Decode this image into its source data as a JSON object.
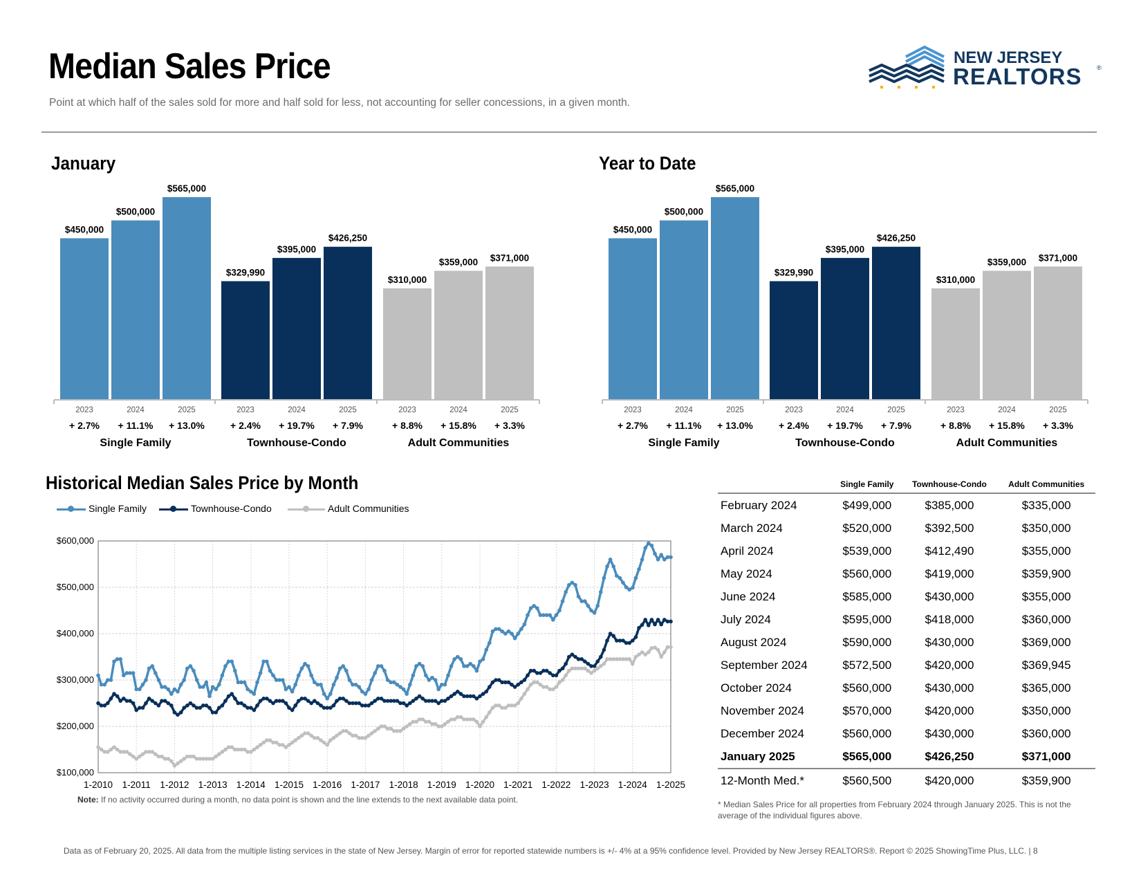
{
  "header": {
    "title": "Median Sales Price",
    "subtitle": "Point at which half of the sales sold for more and half sold for less, not accounting for seller concessions, in a given month.",
    "logo_line1": "NEW JERSEY",
    "logo_line2": "REALTORS"
  },
  "colors": {
    "single_family": "#4a8cbc",
    "townhouse_condo": "#08305a",
    "adult_communities": "#bfbfbf",
    "logo_navy": "#13375e",
    "logo_light": "#4a95d0",
    "logo_gold": "#f2b51a"
  },
  "chart_data": [
    {
      "type": "bar",
      "title": "January",
      "groups": [
        "Single Family",
        "Townhouse-Condo",
        "Adult Communities"
      ],
      "categories": [
        "2023",
        "2024",
        "2025"
      ],
      "series": [
        {
          "name": "Single Family",
          "values": [
            450000,
            500000,
            565000
          ],
          "labels": [
            "$450,000",
            "$500,000",
            "$565,000"
          ],
          "changes": [
            "+ 2.7%",
            "+ 11.1%",
            "+ 13.0%"
          ]
        },
        {
          "name": "Townhouse-Condo",
          "values": [
            329990,
            395000,
            426250
          ],
          "labels": [
            "$329,990",
            "$395,000",
            "$426,250"
          ],
          "changes": [
            "+ 2.4%",
            "+ 19.7%",
            "+ 7.9%"
          ]
        },
        {
          "name": "Adult Communities",
          "values": [
            310000,
            359000,
            371000
          ],
          "labels": [
            "$310,000",
            "$359,000",
            "$371,000"
          ],
          "changes": [
            "+ 8.8%",
            "+ 15.8%",
            "+ 3.3%"
          ]
        }
      ],
      "ylim": [
        0,
        565000
      ]
    },
    {
      "type": "bar",
      "title": "Year to Date",
      "groups": [
        "Single Family",
        "Townhouse-Condo",
        "Adult Communities"
      ],
      "categories": [
        "2023",
        "2024",
        "2025"
      ],
      "series": [
        {
          "name": "Single Family",
          "values": [
            450000,
            500000,
            565000
          ],
          "labels": [
            "$450,000",
            "$500,000",
            "$565,000"
          ],
          "changes": [
            "+ 2.7%",
            "+ 11.1%",
            "+ 13.0%"
          ]
        },
        {
          "name": "Townhouse-Condo",
          "values": [
            329990,
            395000,
            426250
          ],
          "labels": [
            "$329,990",
            "$395,000",
            "$426,250"
          ],
          "changes": [
            "+ 2.4%",
            "+ 19.7%",
            "+ 7.9%"
          ]
        },
        {
          "name": "Adult Communities",
          "values": [
            310000,
            359000,
            371000
          ],
          "labels": [
            "$310,000",
            "$359,000",
            "$371,000"
          ],
          "changes": [
            "+ 8.8%",
            "+ 15.8%",
            "+ 3.3%"
          ]
        }
      ],
      "ylim": [
        0,
        565000
      ]
    },
    {
      "type": "line",
      "title": "Historical Median Sales Price by Month",
      "x_ticks": [
        "1-2010",
        "1-2011",
        "1-2012",
        "1-2013",
        "1-2014",
        "1-2015",
        "1-2016",
        "1-2017",
        "1-2018",
        "1-2019",
        "1-2020",
        "1-2021",
        "1-2022",
        "1-2023",
        "1-2024",
        "1-2025"
      ],
      "y_ticks": [
        "$100,000",
        "$200,000",
        "$300,000",
        "$400,000",
        "$500,000",
        "$600,000"
      ],
      "ylim": [
        100000,
        600000
      ],
      "grid": true,
      "legend": "top-left",
      "series": [
        {
          "name": "Single Family",
          "yearly": [
            [
              310,
              290,
              290,
              300,
              300,
              340,
              345,
              345,
              310,
              315,
              315,
              315
            ],
            [
              280,
              280,
              290,
              300,
              325,
              330,
              315,
              300,
              285,
              285,
              280,
              270
            ],
            [
              280,
              275,
              290,
              300,
              325,
              330,
              320,
              300,
              285,
              285,
              295,
              265
            ],
            [
              285,
              280,
              290,
              310,
              330,
              340,
              340,
              320,
              295,
              295,
              295,
              280
            ],
            [
              275,
              270,
              295,
              315,
              340,
              340,
              320,
              310,
              300,
              300,
              300,
              280
            ],
            [
              285,
              275,
              290,
              310,
              325,
              335,
              330,
              310,
              295,
              290,
              290,
              270
            ],
            [
              260,
              270,
              290,
              305,
              325,
              330,
              320,
              300,
              290,
              290,
              285,
              275
            ],
            [
              270,
              280,
              300,
              315,
              330,
              330,
              320,
              300,
              295,
              295,
              290,
              285
            ],
            [
              280,
              270,
              290,
              310,
              330,
              335,
              330,
              310,
              300,
              305,
              300,
              280
            ],
            [
              290,
              290,
              310,
              330,
              345,
              350,
              345,
              330,
              330,
              335,
              330,
              320
            ],
            [
              340,
              345,
              365,
              380,
              405,
              410,
              410,
              405,
              400,
              405,
              400,
              390
            ],
            [
              400,
              410,
              420,
              440,
              455,
              460,
              455,
              440,
              440,
              440,
              440,
              430
            ],
            [
              440,
              450,
              470,
              490,
              505,
              510,
              505,
              480,
              470,
              470,
              460,
              450
            ],
            [
              445,
              460,
              490,
              520,
              545,
              560,
              545,
              525,
              520,
              510,
              500,
              495
            ],
            [
              499,
              520,
              539,
              560,
              585,
              595,
              590,
              572.5,
              560,
              570,
              560,
              565
            ],
            [
              565
            ]
          ]
        },
        {
          "name": "Townhouse-Condo",
          "yearly": [
            [
              250,
              245,
              245,
              250,
              260,
              270,
              265,
              255,
              260,
              255,
              255,
              250
            ],
            [
              235,
              240,
              240,
              250,
              260,
              255,
              250,
              245,
              255,
              255,
              250,
              245
            ],
            [
              230,
              225,
              230,
              240,
              245,
              250,
              245,
              240,
              240,
              245,
              245,
              240
            ],
            [
              230,
              230,
              240,
              245,
              255,
              265,
              270,
              260,
              250,
              250,
              245,
              240
            ],
            [
              240,
              235,
              245,
              255,
              260,
              260,
              255,
              250,
              255,
              255,
              255,
              250
            ],
            [
              240,
              235,
              245,
              255,
              260,
              260,
              255,
              250,
              255,
              250,
              245,
              240
            ],
            [
              240,
              240,
              245,
              255,
              260,
              260,
              255,
              250,
              250,
              250,
              250,
              245
            ],
            [
              245,
              245,
              250,
              255,
              260,
              260,
              255,
              255,
              255,
              255,
              255,
              250
            ],
            [
              250,
              245,
              250,
              255,
              260,
              265,
              260,
              255,
              255,
              255,
              255,
              250
            ],
            [
              255,
              255,
              260,
              265,
              270,
              275,
              270,
              265,
              265,
              265,
              265,
              260
            ],
            [
              265,
              270,
              275,
              285,
              295,
              300,
              300,
              295,
              295,
              295,
              290,
              285
            ],
            [
              290,
              295,
              300,
              310,
              320,
              320,
              315,
              315,
              320,
              320,
              315,
              310
            ],
            [
              310,
              320,
              325,
              335,
              350,
              355,
              350,
              345,
              345,
              340,
              335,
              330
            ],
            [
              330,
              340,
              350,
              365,
              385,
              400,
              395,
              385,
              385,
              385,
              380,
              380
            ],
            [
              385,
              392.5,
              412.49,
              419,
              430,
              418,
              430,
              420,
              430,
              420,
              430,
              426.25
            ],
            [
              426.25
            ]
          ]
        },
        {
          "name": "Adult Communities",
          "yearly": [
            [
              155,
              150,
              145,
              145,
              150,
              155,
              150,
              145,
              145,
              145,
              140,
              135
            ],
            [
              130,
              135,
              140,
              145,
              145,
              145,
              140,
              135,
              135,
              130,
              130,
              125
            ],
            [
              115,
              120,
              125,
              130,
              135,
              135,
              135,
              130,
              130,
              130,
              130,
              130
            ],
            [
              130,
              135,
              140,
              145,
              150,
              155,
              155,
              150,
              150,
              150,
              150,
              145
            ],
            [
              145,
              150,
              155,
              160,
              165,
              170,
              170,
              165,
              165,
              160,
              160,
              155
            ],
            [
              160,
              165,
              170,
              175,
              180,
              185,
              185,
              180,
              175,
              175,
              170,
              165
            ],
            [
              160,
              170,
              175,
              180,
              185,
              190,
              190,
              185,
              180,
              180,
              175,
              175
            ],
            [
              175,
              180,
              185,
              190,
              195,
              200,
              200,
              195,
              195,
              190,
              190,
              190
            ],
            [
              195,
              200,
              205,
              210,
              210,
              215,
              215,
              210,
              210,
              205,
              205,
              200
            ],
            [
              200,
              205,
              210,
              215,
              215,
              220,
              220,
              215,
              215,
              215,
              215,
              210
            ],
            [
              200,
              210,
              220,
              230,
              240,
              245,
              245,
              240,
              240,
              245,
              245,
              245
            ],
            [
              250,
              260,
              270,
              280,
              290,
              295,
              295,
              290,
              285,
              285,
              280,
              280
            ],
            [
              285,
              295,
              300,
              310,
              320,
              325,
              325,
              325,
              325,
              325,
              320,
              315
            ],
            [
              320,
              325,
              330,
              335,
              345,
              345,
              345,
              345,
              345,
              345,
              345,
              345
            ],
            [
              335,
              350,
              355,
              359.9,
              355,
              360,
              369,
              369.945,
              365,
              350,
              360,
              371
            ],
            [
              371
            ]
          ]
        }
      ]
    },
    {
      "type": "table",
      "columns": [
        "Single Family",
        "Townhouse-Condo",
        "Adult Communities"
      ],
      "rows": [
        [
          "February 2024",
          "$499,000",
          "$385,000",
          "$335,000"
        ],
        [
          "March 2024",
          "$520,000",
          "$392,500",
          "$350,000"
        ],
        [
          "April 2024",
          "$539,000",
          "$412,490",
          "$355,000"
        ],
        [
          "May 2024",
          "$560,000",
          "$419,000",
          "$359,900"
        ],
        [
          "June 2024",
          "$585,000",
          "$430,000",
          "$355,000"
        ],
        [
          "July 2024",
          "$595,000",
          "$418,000",
          "$360,000"
        ],
        [
          "August 2024",
          "$590,000",
          "$430,000",
          "$369,000"
        ],
        [
          "September 2024",
          "$572,500",
          "$420,000",
          "$369,945"
        ],
        [
          "October 2024",
          "$560,000",
          "$430,000",
          "$365,000"
        ],
        [
          "November 2024",
          "$570,000",
          "$420,000",
          "$350,000"
        ],
        [
          "December 2024",
          "$560,000",
          "$430,000",
          "$360,000"
        ],
        [
          "January 2025",
          "$565,000",
          "$426,250",
          "$371,000"
        ],
        [
          "12-Month Med.*",
          "$560,500",
          "$420,000",
          "$359,900"
        ]
      ]
    }
  ],
  "section_titles": {
    "january": "January",
    "ytd": "Year to Date",
    "historical": "Historical Median Sales Price by Month"
  },
  "note_label": "Note:",
  "note_text": " If no activity occurred during a month, no data point is shown and the line extends to the next available data point.",
  "table_footnote": "* Median Sales Price for all properties from February 2024 through January 2025. This is not the average of the individual figures above.",
  "footer": "Data as of February 20, 2025. All data from the multiple listing services in the state of New Jersey. Margin of error for reported statewide numbers is +/- 4% at a 95% confidence level. Provided by New Jersey REALTORS®. Report © 2025 ShowingTime Plus, LLC. | 8"
}
